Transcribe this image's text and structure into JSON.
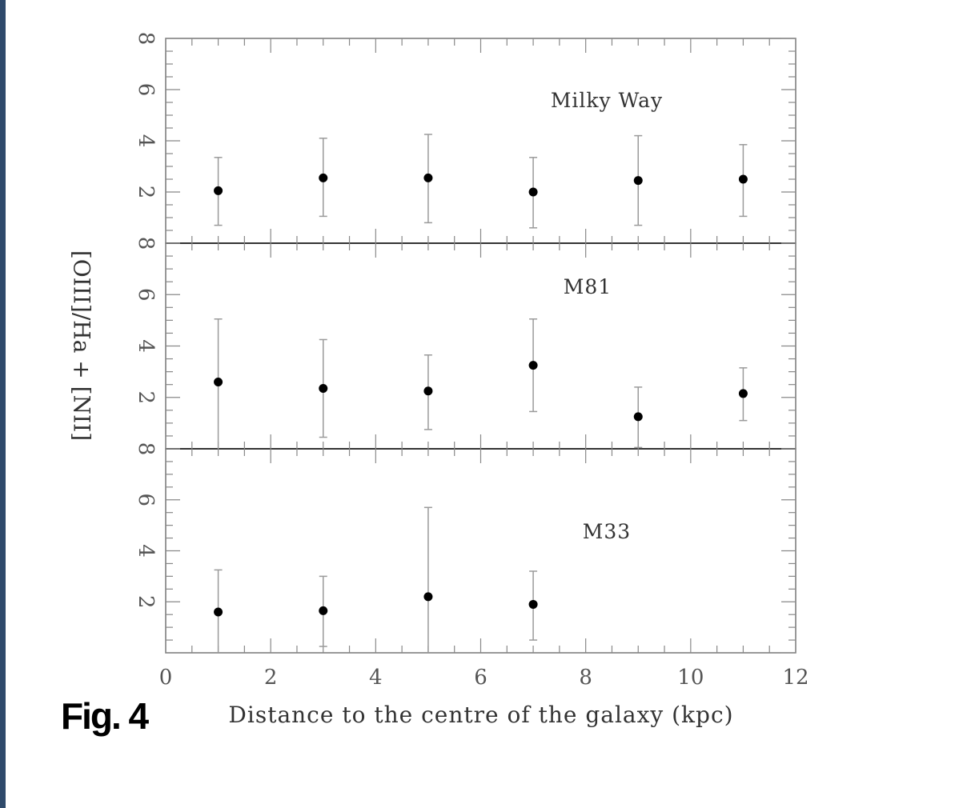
{
  "figure_label": "Fig. 4",
  "chart_data": {
    "type": "scatter",
    "error_bars": true,
    "shared_x": true,
    "xlabel": "Distance to the centre of the galaxy (kpc)",
    "ylabel": "[OIII]/Ha + [NII]",
    "xlim": [
      0,
      12
    ],
    "x_ticks": [
      0,
      2,
      4,
      6,
      8,
      10,
      12
    ],
    "ylim": [
      0,
      8
    ],
    "y_ticks": [
      2,
      4,
      6,
      8
    ],
    "grid": false,
    "panels": [
      {
        "name": "Milky Way",
        "points": [
          {
            "x": 1,
            "y": 2.05,
            "lo": 0.7,
            "hi": 3.35
          },
          {
            "x": 3,
            "y": 2.55,
            "lo": 1.05,
            "hi": 4.1
          },
          {
            "x": 5,
            "y": 2.55,
            "lo": 0.8,
            "hi": 4.25
          },
          {
            "x": 7,
            "y": 2.0,
            "lo": 0.6,
            "hi": 3.35
          },
          {
            "x": 9,
            "y": 2.45,
            "lo": 0.7,
            "hi": 4.2
          },
          {
            "x": 11,
            "y": 2.5,
            "lo": 1.05,
            "hi": 3.85
          }
        ]
      },
      {
        "name": "M81",
        "points": [
          {
            "x": 1,
            "y": 2.6,
            "lo": 0.0,
            "hi": 5.05
          },
          {
            "x": 3,
            "y": 2.35,
            "lo": 0.45,
            "hi": 4.25
          },
          {
            "x": 5,
            "y": 2.25,
            "lo": 0.75,
            "hi": 3.65
          },
          {
            "x": 7,
            "y": 3.25,
            "lo": 1.45,
            "hi": 5.05
          },
          {
            "x": 9,
            "y": 1.25,
            "lo": 0.05,
            "hi": 2.4
          },
          {
            "x": 11,
            "y": 2.15,
            "lo": 1.1,
            "hi": 3.15
          }
        ]
      },
      {
        "name": "M33",
        "points": [
          {
            "x": 1,
            "y": 1.6,
            "lo": 0.0,
            "hi": 3.25
          },
          {
            "x": 3,
            "y": 1.65,
            "lo": 0.25,
            "hi": 3.0
          },
          {
            "x": 5,
            "y": 2.2,
            "lo": 0.0,
            "hi": 5.7
          },
          {
            "x": 7,
            "y": 1.9,
            "lo": 0.5,
            "hi": 3.2
          }
        ]
      }
    ]
  }
}
